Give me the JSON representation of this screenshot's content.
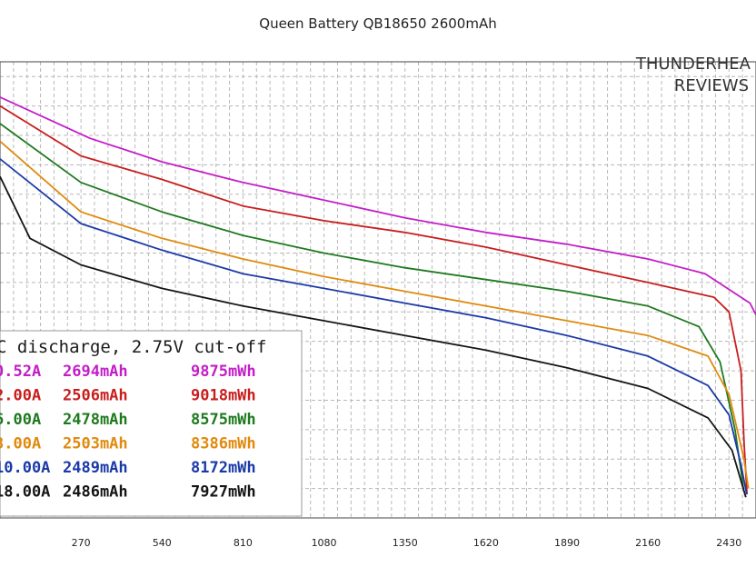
{
  "chart_data": {
    "type": "line",
    "title": "Queen Battery QB18650 2600mAh",
    "watermark": [
      "THUNDERHEA",
      "REVIEWS"
    ],
    "x_ticks": [
      "270",
      "540",
      "810",
      "1080",
      "1350",
      "1620",
      "1890",
      "2160",
      "2430"
    ],
    "xlim": [
      0,
      2520
    ],
    "ylim": [
      2.7,
      4.25
    ],
    "grid": true,
    "legend_title": "C discharge, 2.75V cut-off",
    "series": [
      {
        "name": "0.52A",
        "capacity": "2694mAh",
        "energy": "9875mWh",
        "color": "#c31ec8",
        "x": [
          0,
          300,
          540,
          810,
          1080,
          1350,
          1620,
          1890,
          2160,
          2350,
          2500,
          2520
        ],
        "y": [
          4.13,
          3.99,
          3.91,
          3.84,
          3.78,
          3.72,
          3.67,
          3.63,
          3.58,
          3.53,
          3.43,
          3.39
        ]
      },
      {
        "name": "2.00A",
        "capacity": "2506mAh",
        "energy": "9018mWh",
        "color": "#c81e1e",
        "x": [
          0,
          270,
          540,
          810,
          1080,
          1350,
          1620,
          1890,
          2160,
          2380,
          2430,
          2470,
          2480,
          2490
        ],
        "y": [
          4.1,
          3.93,
          3.85,
          3.76,
          3.71,
          3.67,
          3.62,
          3.56,
          3.5,
          3.45,
          3.4,
          3.2,
          2.96,
          2.78
        ]
      },
      {
        "name": "6.00A",
        "capacity": "2478mAh",
        "energy": "8575mWh",
        "color": "#1f7a1f",
        "x": [
          0,
          270,
          540,
          810,
          1080,
          1350,
          1620,
          1890,
          2160,
          2330,
          2400,
          2450,
          2470,
          2478
        ],
        "y": [
          4.04,
          3.84,
          3.74,
          3.66,
          3.6,
          3.55,
          3.51,
          3.47,
          3.42,
          3.35,
          3.23,
          3.0,
          2.86,
          2.8
        ]
      },
      {
        "name": "8.00A",
        "capacity": "2503mAh",
        "energy": "8386mWh",
        "color": "#e08a0e",
        "x": [
          0,
          270,
          540,
          810,
          1080,
          1350,
          1620,
          1890,
          2160,
          2360,
          2430,
          2480,
          2495
        ],
        "y": [
          3.98,
          3.74,
          3.65,
          3.58,
          3.52,
          3.47,
          3.42,
          3.37,
          3.32,
          3.25,
          3.12,
          2.9,
          2.8
        ]
      },
      {
        "name": "10.00A",
        "capacity": "2489mAh",
        "energy": "8172mWh",
        "color": "#1b3aa8",
        "x": [
          0,
          270,
          540,
          810,
          1080,
          1350,
          1620,
          1890,
          2160,
          2360,
          2430,
          2470,
          2489
        ],
        "y": [
          3.92,
          3.7,
          3.61,
          3.53,
          3.48,
          3.43,
          3.38,
          3.32,
          3.25,
          3.15,
          3.05,
          2.88,
          2.78
        ]
      },
      {
        "name": "18.00A",
        "capacity": "2486mAh",
        "energy": "7927mWh",
        "color": "#151515",
        "x": [
          0,
          100,
          270,
          540,
          810,
          1080,
          1350,
          1620,
          1890,
          2160,
          2360,
          2440,
          2486
        ],
        "y": [
          3.86,
          3.65,
          3.56,
          3.48,
          3.42,
          3.37,
          3.32,
          3.27,
          3.21,
          3.14,
          3.04,
          2.93,
          2.77
        ]
      }
    ]
  }
}
